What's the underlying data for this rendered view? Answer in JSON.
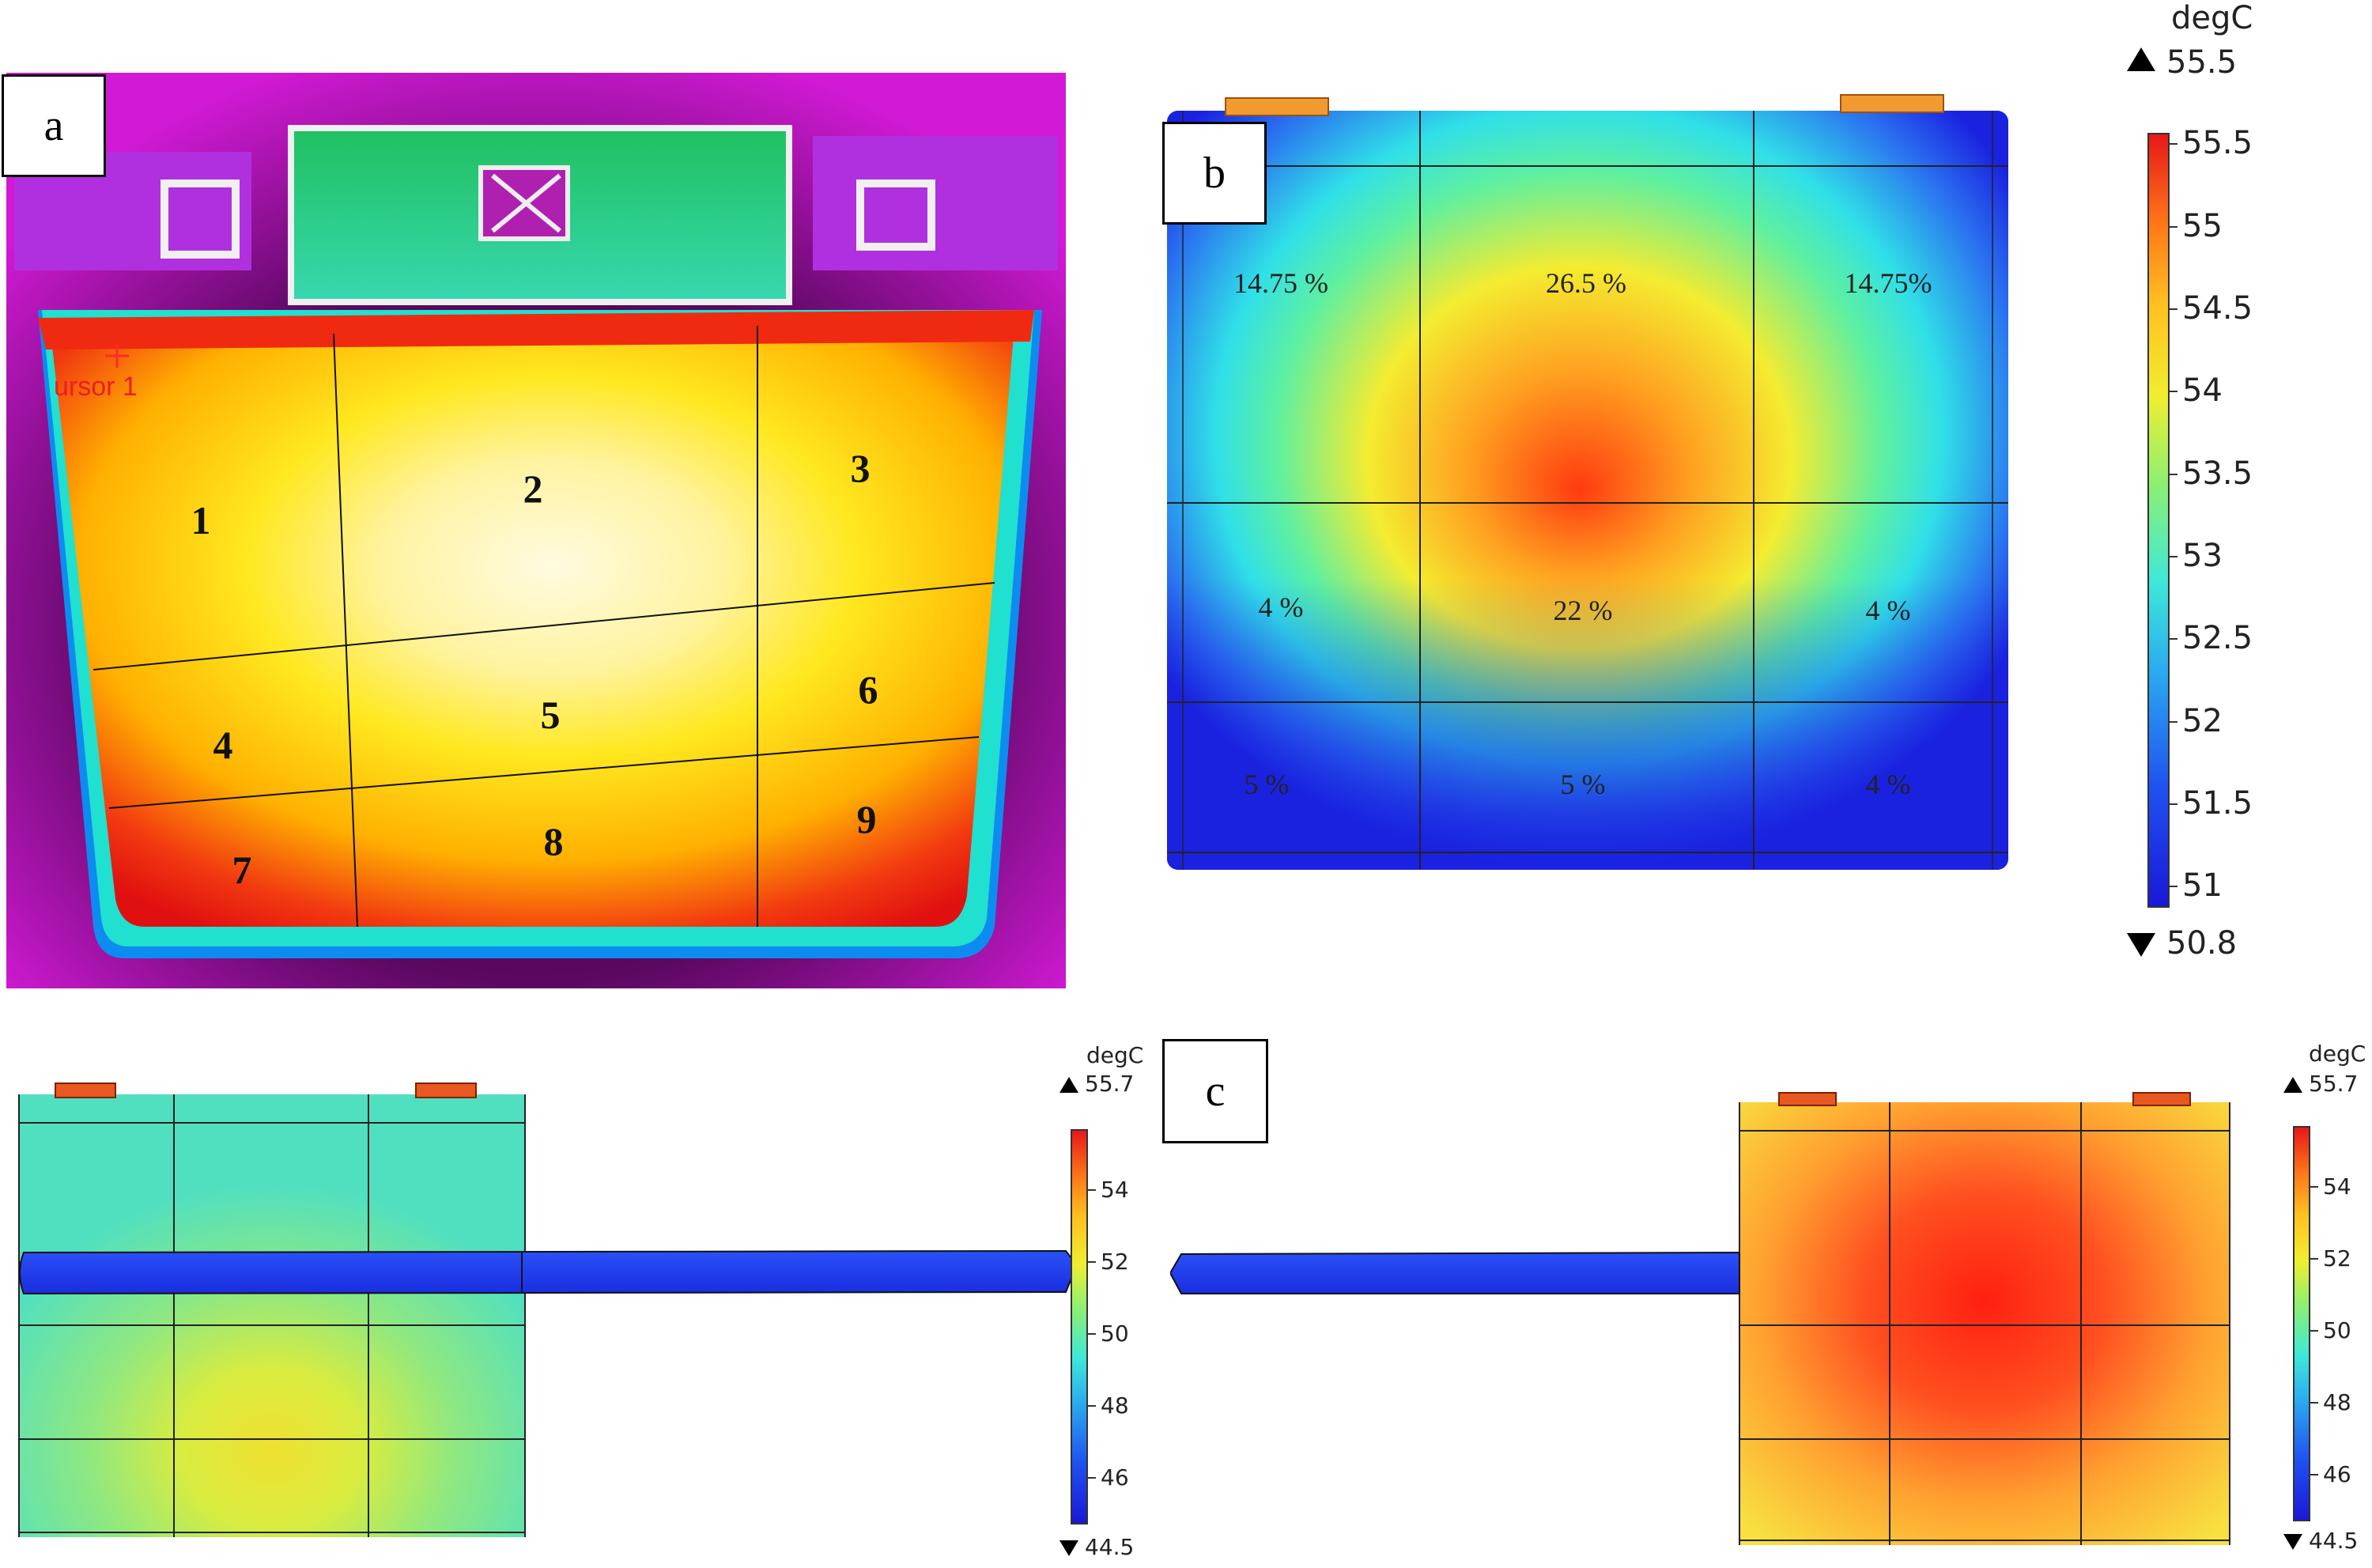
{
  "panels": {
    "a": {
      "label": "a",
      "cursor_text": "ursor 1",
      "zones": [
        "1",
        "2",
        "3",
        "4",
        "5",
        "6",
        "7",
        "8",
        "9"
      ]
    },
    "b": {
      "label": "b",
      "percentages": [
        "14.75 %",
        "26.5 %",
        "14.75%",
        "4 %",
        "22 %",
        "4 %",
        "5 %",
        "5 %",
        "4 %"
      ],
      "colorbar": {
        "unit": "degC",
        "max_marker": "55.5",
        "min_marker": "50.8",
        "ticks": [
          "55.5",
          "55",
          "54.5",
          "54",
          "53.5",
          "53",
          "52.5",
          "52",
          "51.5",
          "51"
        ]
      }
    },
    "c": {
      "label": "c",
      "colorbar_left": {
        "unit": "degC",
        "max_marker": "55.7",
        "min_marker": "44.5",
        "ticks": [
          "54",
          "52",
          "50",
          "48",
          "46"
        ]
      },
      "colorbar_right": {
        "unit": "degC",
        "max_marker": "55.7",
        "min_marker": "44.5",
        "ticks": [
          "54",
          "52",
          "50",
          "48",
          "46"
        ]
      }
    }
  },
  "colors": {
    "thermal_red": "#e81010",
    "thermal_yellow": "#ffee20",
    "sim_blue": "#1a2ee8",
    "sim_cyan": "#33e8e0",
    "tab_orange": "#f08a20"
  }
}
